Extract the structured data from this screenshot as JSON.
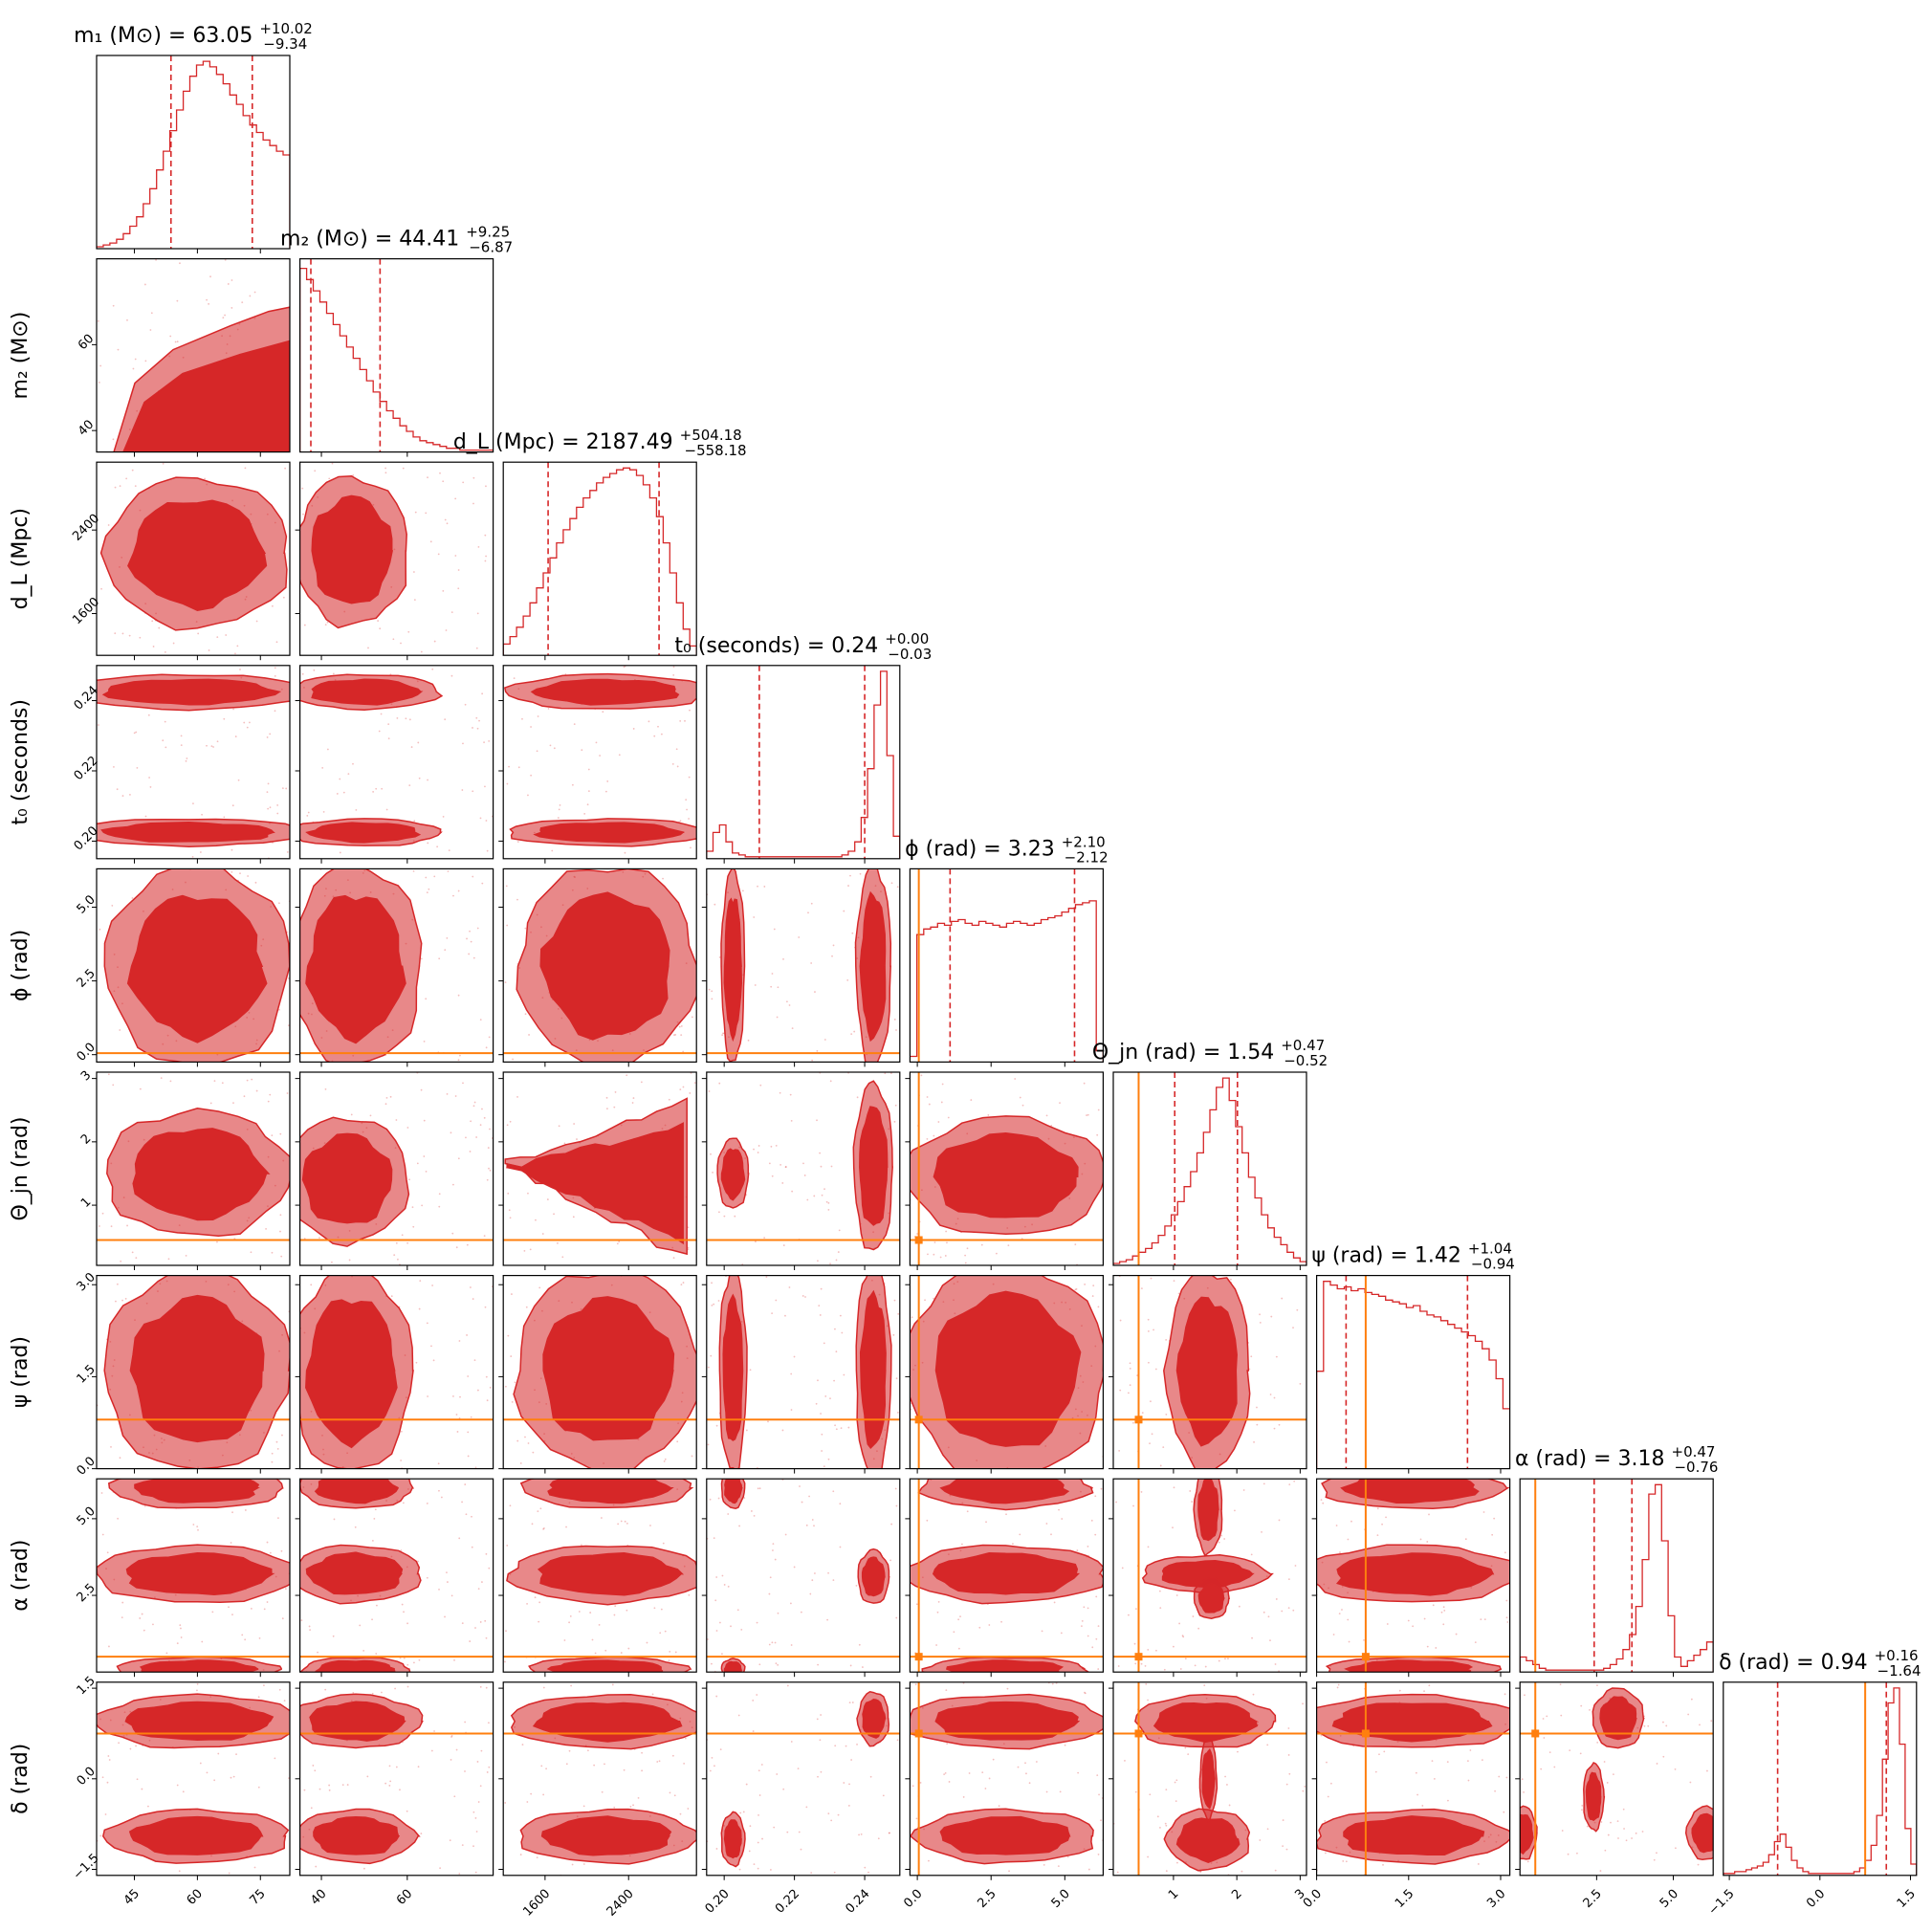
{
  "chart_data": {
    "type": "corner",
    "colors": {
      "posterior": "#d62728",
      "injection": "#ff7f0e",
      "quantile": "#d62728"
    },
    "parameters": [
      {
        "key": "m1",
        "label": "m₁ (M⊙)",
        "title": "m₁ (M⊙) = 63.05",
        "median": 63.05,
        "err_plus": "+10.02",
        "err_minus": "−9.34",
        "range": [
          36,
          82
        ],
        "ticks": [
          45,
          60,
          75
        ],
        "tick_labels": [
          "45",
          "60",
          "75"
        ]
      },
      {
        "key": "m2",
        "label": "m₂ (M⊙)",
        "title": "m₂ (M⊙) = 44.41",
        "median": 44.41,
        "err_plus": "+9.25",
        "err_minus": "−6.87",
        "range": [
          35,
          80
        ],
        "ticks": [
          40,
          60
        ],
        "tick_labels": [
          "40",
          "60"
        ]
      },
      {
        "key": "dL",
        "label": "d_L (Mpc)",
        "title": "d_L (Mpc) = 2187.49",
        "median": 2187.49,
        "err_plus": "+504.18",
        "err_minus": "−558.18",
        "range": [
          1200,
          3050
        ],
        "ticks": [
          1600,
          2400
        ],
        "tick_labels": [
          "1600",
          "2400"
        ]
      },
      {
        "key": "t0",
        "label": "t₀ (seconds)",
        "title": "t₀ (seconds) = 0.24",
        "median": 0.24,
        "err_plus": "+0.00",
        "err_minus": "−0.03",
        "range": [
          0.195,
          0.25
        ],
        "ticks": [
          0.2,
          0.22,
          0.24
        ],
        "tick_labels": [
          "0.20",
          "0.22",
          "0.24"
        ]
      },
      {
        "key": "phi",
        "label": "ϕ (rad)",
        "title": "ϕ (rad) = 3.23",
        "median": 3.23,
        "err_plus": "+2.10",
        "err_minus": "−2.12",
        "range": [
          -0.25,
          6.3
        ],
        "ticks": [
          0,
          2.5,
          5
        ],
        "tick_labels": [
          "0.0",
          "2.5",
          "5.0"
        ]
      },
      {
        "key": "theta",
        "label": "Θ_jn (rad)",
        "title": "Θ_jn (rad) = 1.54",
        "median": 1.54,
        "err_plus": "+0.47",
        "err_minus": "−0.52",
        "range": [
          0.05,
          3.1
        ],
        "ticks": [
          1,
          2,
          3
        ],
        "tick_labels": [
          "1",
          "2",
          "3"
        ]
      },
      {
        "key": "psi",
        "label": "ψ (rad)",
        "title": "ψ (rad) = 1.42",
        "median": 1.42,
        "err_plus": "+1.04",
        "err_minus": "−0.94",
        "range": [
          0,
          3.15
        ],
        "ticks": [
          0,
          1.5,
          3
        ],
        "tick_labels": [
          "0.0",
          "1.5",
          "3.0"
        ]
      },
      {
        "key": "alpha",
        "label": "α (rad)",
        "title": "α (rad) = 3.18",
        "median": 3.18,
        "err_plus": "+0.47",
        "err_minus": "−0.76",
        "range": [
          0,
          6.3
        ],
        "ticks": [
          2.5,
          5
        ],
        "tick_labels": [
          "2.5",
          "5.0"
        ]
      },
      {
        "key": "delta",
        "label": "δ (rad)",
        "title": "δ (rad) = 0.94",
        "median": 0.94,
        "err_plus": "+0.16",
        "err_minus": "−1.64",
        "range": [
          -1.6,
          1.6
        ],
        "ticks": [
          -1.5,
          0,
          1.5
        ],
        "tick_labels": [
          "−1.5",
          "0.0",
          "1.5"
        ]
      }
    ],
    "injection": {
      "phi": 0.05,
      "theta": 0.45,
      "psi": 0.8,
      "alpha": 0.5,
      "delta": 0.75
    },
    "histograms": {
      "m1": [
        1,
        2,
        3,
        5,
        8,
        12,
        17,
        24,
        32,
        42,
        52,
        63,
        74,
        84,
        92,
        98,
        100,
        97,
        93,
        88,
        82,
        77,
        71,
        66,
        62,
        58,
        55,
        52,
        50
      ],
      "m2": [
        98,
        92,
        86,
        80,
        74,
        68,
        62,
        56,
        50,
        44,
        38,
        32,
        27,
        22,
        18,
        14,
        11,
        8,
        6,
        5,
        4,
        3,
        2,
        2,
        1,
        1,
        1,
        1,
        1
      ],
      "dL": [
        6,
        10,
        15,
        21,
        28,
        36,
        44,
        52,
        60,
        67,
        73,
        79,
        84,
        88,
        92,
        95,
        97,
        99,
        100,
        99,
        96,
        91,
        84,
        74,
        60,
        44,
        28,
        14,
        5
      ],
      "t0": [
        4,
        14,
        18,
        9,
        3,
        2,
        1,
        1,
        1,
        1,
        1,
        1,
        1,
        1,
        1,
        1,
        1,
        1,
        1,
        1,
        1,
        2,
        4,
        9,
        22,
        48,
        82,
        100,
        55,
        12
      ],
      "phi": [
        3,
        68,
        71,
        72,
        74,
        73,
        75,
        76,
        74,
        73,
        75,
        74,
        73,
        72,
        74,
        75,
        74,
        73,
        74,
        76,
        77,
        78,
        80,
        82,
        84,
        85,
        86,
        6
      ],
      "theta": [
        1,
        2,
        3,
        5,
        7,
        9,
        12,
        16,
        21,
        27,
        34,
        42,
        50,
        60,
        71,
        83,
        95,
        100,
        88,
        74,
        60,
        47,
        36,
        27,
        20,
        15,
        11,
        7,
        4,
        2
      ],
      "psi": [
        52,
        100,
        98,
        96,
        97,
        95,
        96,
        94,
        93,
        92,
        90,
        89,
        88,
        86,
        87,
        84,
        82,
        81,
        79,
        77,
        75,
        73,
        71,
        68,
        64,
        58,
        48,
        32
      ],
      "alpha": [
        8,
        6,
        4,
        2,
        1,
        1,
        1,
        1,
        1,
        1,
        1,
        1,
        1,
        2,
        4,
        7,
        12,
        20,
        35,
        60,
        95,
        100,
        70,
        30,
        8,
        3,
        6,
        9,
        12,
        16
      ],
      "delta": [
        1,
        1,
        2,
        2,
        3,
        4,
        5,
        7,
        11,
        18,
        22,
        15,
        8,
        4,
        2,
        1,
        1,
        1,
        1,
        1,
        1,
        1,
        1,
        2,
        4,
        8,
        16,
        32,
        62,
        92,
        100,
        70,
        25,
        6
      ]
    }
  }
}
